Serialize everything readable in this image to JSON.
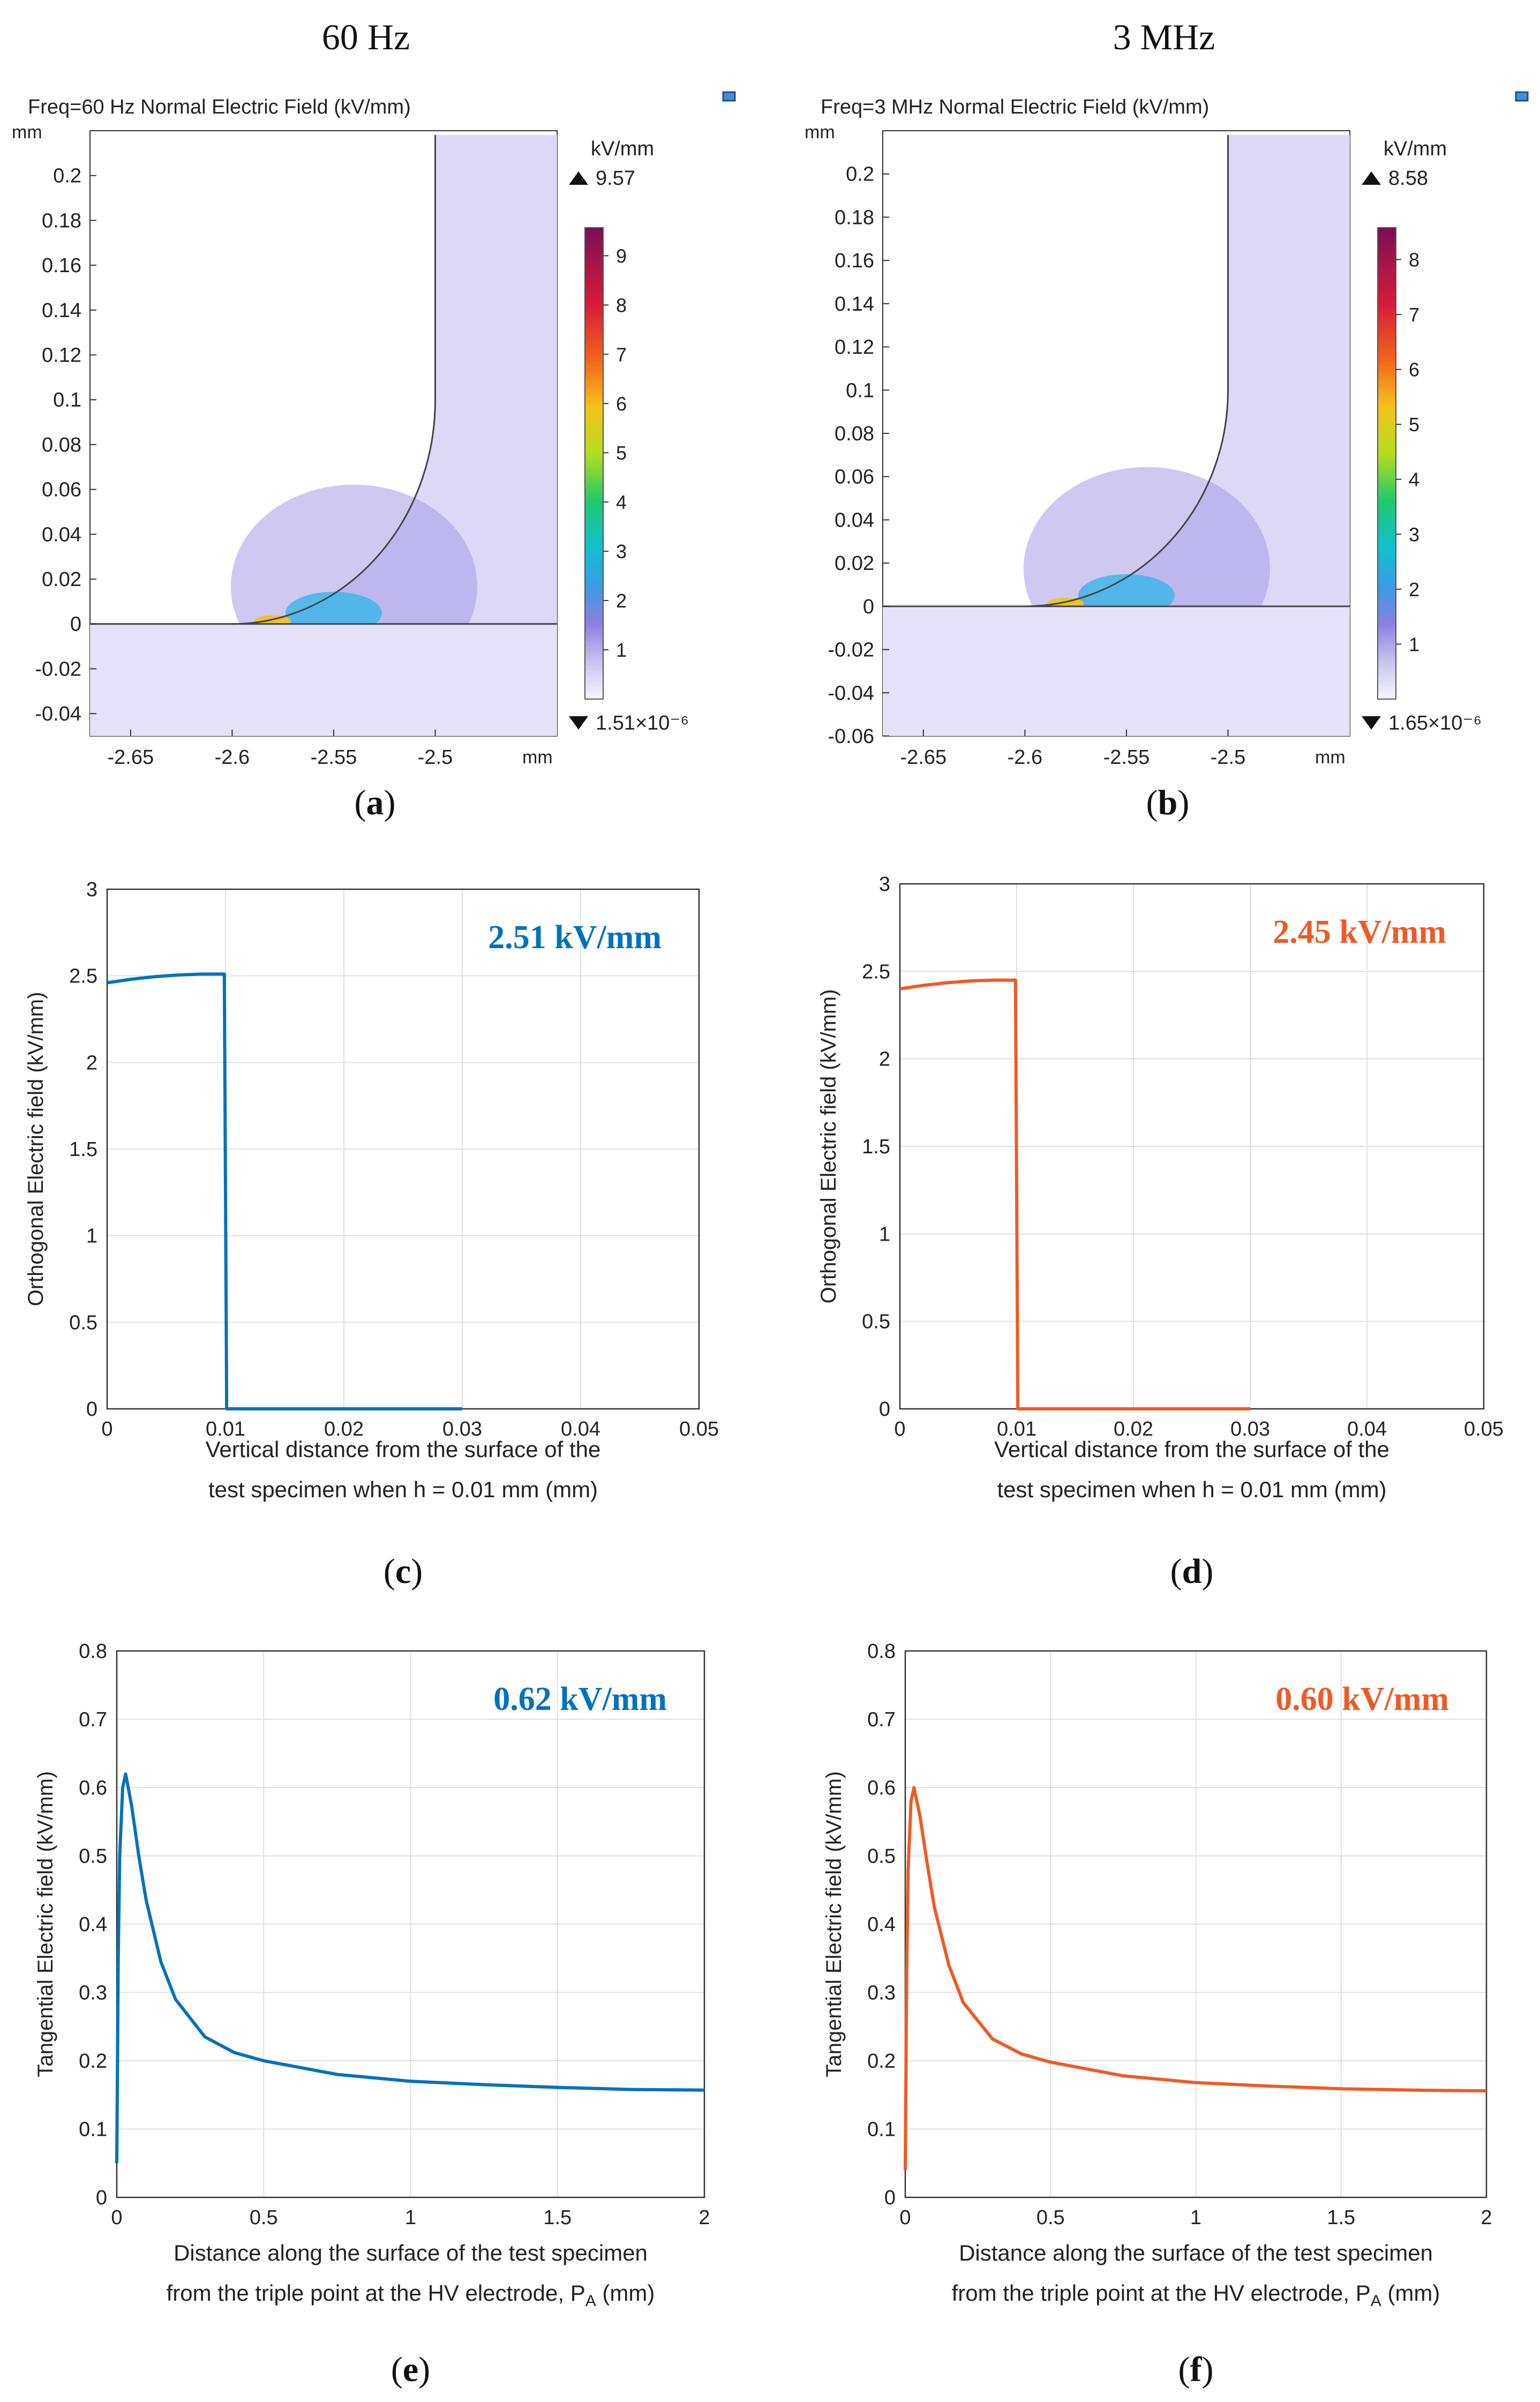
{
  "columns": [
    "60 Hz",
    "3 MHz"
  ],
  "chart_data": [
    {
      "id": "a",
      "type": "heatmap",
      "panel_label": "a",
      "title": "Freq=60 Hz  Normal Electric Field (kV/mm)",
      "units": "mm",
      "xlim": [
        -2.67,
        -2.44
      ],
      "ylim": [
        -0.05,
        0.22
      ],
      "xticks": [
        -2.65,
        -2.6,
        -2.55,
        -2.5
      ],
      "yticks": [
        0.2,
        0.18,
        0.16,
        0.14,
        0.12,
        0.1,
        0.08,
        0.06,
        0.04,
        0.02,
        0,
        -0.02,
        -0.04
      ],
      "electrode_corner": {
        "x": -2.5,
        "y": 0,
        "radius": 0.1
      },
      "max_region": {
        "x": -2.58,
        "y": 0
      },
      "colorbar": {
        "unit": "kV/mm",
        "max_label": "9.57",
        "min_label": "1.51×10⁻⁶",
        "ticks": [
          9,
          8,
          7,
          6,
          5,
          4,
          3,
          2,
          1
        ],
        "range": [
          0,
          9.57
        ]
      }
    },
    {
      "id": "b",
      "type": "heatmap",
      "panel_label": "b",
      "title": "Freq=3 MHz  Normal Electric Field (kV/mm)",
      "units": "mm",
      "xlim": [
        -2.67,
        -2.44
      ],
      "ylim": [
        -0.06,
        0.22
      ],
      "xticks": [
        -2.65,
        -2.6,
        -2.55,
        -2.5
      ],
      "yticks": [
        0.2,
        0.18,
        0.16,
        0.14,
        0.12,
        0.1,
        0.08,
        0.06,
        0.04,
        0.02,
        0,
        -0.02,
        -0.04,
        -0.06
      ],
      "electrode_corner": {
        "x": -2.5,
        "y": 0,
        "radius": 0.1
      },
      "max_region": {
        "x": -2.58,
        "y": 0
      },
      "colorbar": {
        "unit": "kV/mm",
        "max_label": "8.58",
        "min_label": "1.65×10⁻⁶",
        "ticks": [
          8,
          7,
          6,
          5,
          4,
          3,
          2,
          1
        ],
        "range": [
          0,
          8.58
        ]
      }
    },
    {
      "id": "c",
      "type": "line",
      "panel_label": "c",
      "xlabel": [
        "Vertical distance from the surface of the",
        "test specimen when h = 0.01 mm (mm)"
      ],
      "ylabel": "Orthogonal Electric field (kV/mm)",
      "xlim": [
        0,
        0.05
      ],
      "ylim": [
        0,
        3
      ],
      "xticks": [
        "0",
        "0.01",
        "0.02",
        "0.03",
        "0.04",
        "0.05"
      ],
      "yticks": [
        "0",
        "0.5",
        "1",
        "1.5",
        "2",
        "2.5",
        "3"
      ],
      "annotation": "2.51 kV/mm",
      "color": "#0072bd",
      "series": [
        {
          "name": "60 Hz",
          "x": [
            0,
            0.002,
            0.004,
            0.006,
            0.008,
            0.0095,
            0.0099,
            0.0101,
            0.015,
            0.02,
            0.025,
            0.03
          ],
          "y": [
            2.46,
            2.48,
            2.495,
            2.505,
            2.51,
            2.51,
            2.51,
            0,
            0,
            0,
            0,
            0
          ]
        }
      ]
    },
    {
      "id": "d",
      "type": "line",
      "panel_label": "d",
      "xlabel": [
        "Vertical distance from the surface of the",
        "test specimen when h = 0.01 mm (mm)"
      ],
      "ylabel": "Orthogonal Electric field (kV/mm)",
      "xlim": [
        0,
        0.05
      ],
      "ylim": [
        0,
        3
      ],
      "xticks": [
        "0",
        "0.01",
        "0.02",
        "0.03",
        "0.04",
        "0.05"
      ],
      "yticks": [
        "0",
        "0.5",
        "1",
        "1.5",
        "2",
        "2.5",
        "3"
      ],
      "annotation": "2.45 kV/mm",
      "color": "#f05a23",
      "series": [
        {
          "name": "3 MHz",
          "x": [
            0,
            0.002,
            0.004,
            0.006,
            0.008,
            0.0095,
            0.0099,
            0.0101,
            0.015,
            0.02,
            0.025,
            0.03
          ],
          "y": [
            2.4,
            2.42,
            2.435,
            2.445,
            2.45,
            2.45,
            2.45,
            0,
            0,
            0,
            0,
            0
          ]
        }
      ]
    },
    {
      "id": "e",
      "type": "line",
      "panel_label": "e",
      "xlabel": [
        "Distance along the surface of the test specimen",
        "from the triple point at the HV electrode, P_A (mm)"
      ],
      "ylabel": "Tangential Electric field (kV/mm)",
      "xlim": [
        0,
        2
      ],
      "ylim": [
        0,
        0.8
      ],
      "xticks": [
        "0",
        "0.5",
        "1",
        "1.5",
        "2"
      ],
      "yticks": [
        "0",
        "0.1",
        "0.2",
        "0.3",
        "0.4",
        "0.5",
        "0.6",
        "0.7",
        "0.8"
      ],
      "annotation": "0.62 kV/mm",
      "color": "#0072bd",
      "series": [
        {
          "name": "60 Hz",
          "x": [
            0,
            0.005,
            0.01,
            0.02,
            0.03,
            0.05,
            0.075,
            0.1,
            0.15,
            0.2,
            0.3,
            0.4,
            0.5,
            0.75,
            1.0,
            1.25,
            1.5,
            1.75,
            2.0
          ],
          "y": [
            0.05,
            0.35,
            0.5,
            0.6,
            0.62,
            0.575,
            0.5,
            0.435,
            0.345,
            0.29,
            0.235,
            0.212,
            0.2,
            0.18,
            0.17,
            0.165,
            0.161,
            0.158,
            0.157
          ]
        }
      ]
    },
    {
      "id": "f",
      "type": "line",
      "panel_label": "f",
      "xlabel": [
        "Distance along the surface of the test specimen",
        "from the triple point at the HV electrode, P_A (mm)"
      ],
      "ylabel": "Tangential Electric field (kV/mm)",
      "xlim": [
        0,
        2
      ],
      "ylim": [
        0,
        0.8
      ],
      "xticks": [
        "0",
        "0.5",
        "1",
        "1.5",
        "2"
      ],
      "yticks": [
        "0",
        "0.1",
        "0.2",
        "0.3",
        "0.4",
        "0.5",
        "0.6",
        "0.7",
        "0.8"
      ],
      "annotation": "0.60 kV/mm",
      "color": "#f05a23",
      "series": [
        {
          "name": "3 MHz",
          "x": [
            0,
            0.005,
            0.01,
            0.02,
            0.03,
            0.05,
            0.075,
            0.1,
            0.15,
            0.2,
            0.3,
            0.4,
            0.5,
            0.75,
            1.0,
            1.25,
            1.5,
            1.75,
            2.0
          ],
          "y": [
            0.04,
            0.33,
            0.48,
            0.58,
            0.6,
            0.56,
            0.49,
            0.425,
            0.34,
            0.285,
            0.232,
            0.21,
            0.198,
            0.178,
            0.168,
            0.163,
            0.159,
            0.157,
            0.156
          ]
        }
      ]
    }
  ]
}
